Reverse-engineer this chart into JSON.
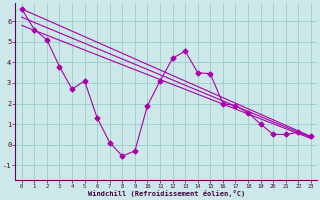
{
  "bg_color": "#cce8e8",
  "line_color": "#aa00aa",
  "grid_color": "#99cccc",
  "xlabel": "Windchill (Refroidissement éolien,°C)",
  "xlim": [
    -0.5,
    23.5
  ],
  "ylim": [
    -1.7,
    6.9
  ],
  "xticks": [
    0,
    1,
    2,
    3,
    4,
    5,
    6,
    7,
    8,
    9,
    10,
    11,
    12,
    13,
    14,
    15,
    16,
    17,
    18,
    19,
    20,
    21,
    22,
    23
  ],
  "yticks": [
    -1,
    0,
    1,
    2,
    3,
    4,
    5,
    6
  ],
  "series1_x": [
    0,
    1,
    2,
    3,
    4,
    5,
    6,
    7,
    8,
    9,
    10,
    11,
    12,
    13,
    14,
    15,
    16,
    17,
    18,
    19,
    20,
    21,
    22,
    23
  ],
  "series1_y": [
    6.6,
    5.6,
    5.1,
    3.8,
    2.7,
    3.1,
    1.3,
    0.1,
    -0.55,
    -0.3,
    1.9,
    3.1,
    4.2,
    4.55,
    3.5,
    3.45,
    2.0,
    1.9,
    1.55,
    1.0,
    0.5,
    0.5,
    0.6,
    0.4
  ],
  "trend1_x": [
    0,
    23
  ],
  "trend1_y": [
    6.6,
    0.4
  ],
  "trend2_x": [
    0,
    23
  ],
  "trend2_y": [
    6.2,
    0.35
  ],
  "trend3_x": [
    0,
    23
  ],
  "trend3_y": [
    5.8,
    0.3
  ],
  "spine_color": "#660066",
  "tick_color": "#660066",
  "label_color": "#440044"
}
